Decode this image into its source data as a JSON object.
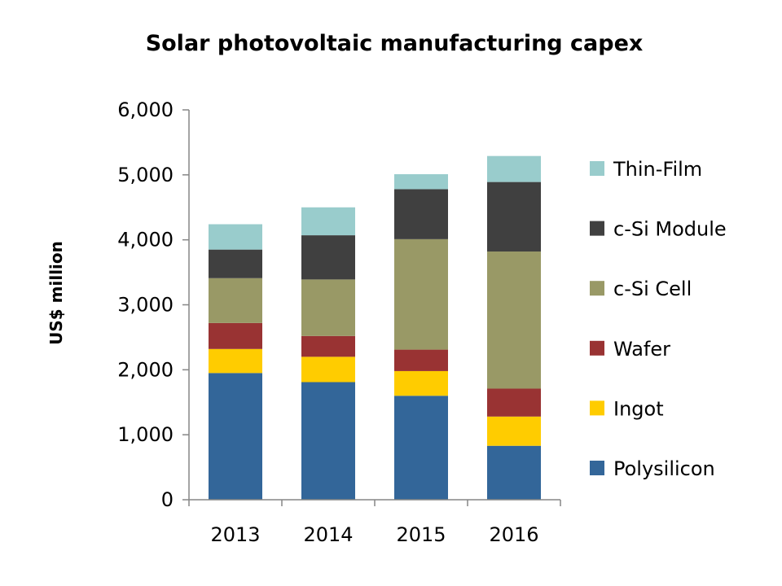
{
  "chart_data": {
    "type": "bar",
    "stacked": true,
    "title": "Solar photovoltaic manufacturing capex",
    "xlabel": "",
    "ylabel": "US$ million",
    "ylim": [
      0,
      6000
    ],
    "yticks": [
      0,
      1000,
      2000,
      3000,
      4000,
      5000,
      6000
    ],
    "ytick_labels": [
      "0",
      "1,000",
      "2,000",
      "3,000",
      "4,000",
      "5,000",
      "6,000"
    ],
    "categories": [
      "2013",
      "2014",
      "2015",
      "2016"
    ],
    "grid": false,
    "legend_position": "right",
    "series": [
      {
        "name": "Polysilicon",
        "color": "#336699",
        "values": [
          1950,
          1810,
          1600,
          830
        ]
      },
      {
        "name": "Ingot",
        "color": "#FFCC00",
        "values": [
          370,
          390,
          380,
          450
        ]
      },
      {
        "name": "Wafer",
        "color": "#993333",
        "values": [
          400,
          320,
          330,
          430
        ]
      },
      {
        "name": "c-Si Cell",
        "color": "#999966",
        "values": [
          690,
          870,
          1700,
          2110
        ]
      },
      {
        "name": "c-Si Module",
        "color": "#404040",
        "values": [
          440,
          680,
          770,
          1070
        ]
      },
      {
        "name": "Thin-Film",
        "color": "#99CCCC",
        "values": [
          390,
          430,
          230,
          400
        ]
      }
    ]
  }
}
